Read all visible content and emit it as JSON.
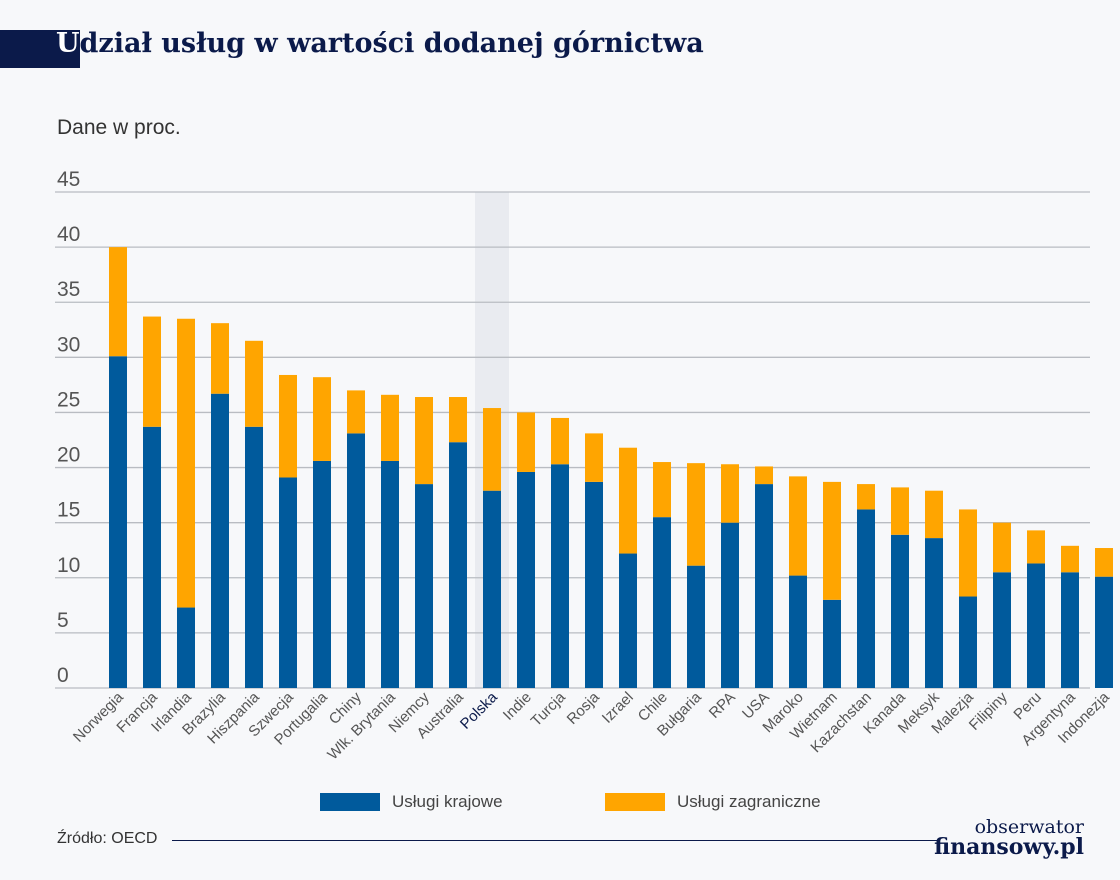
{
  "title_first_letter": "U",
  "title_rest": "dział usług w wartości dodanej górnictwa",
  "subtitle": "Dane w proc.",
  "source": "Źródło: OECD",
  "logo": {
    "line1": "obserwator",
    "line2": "finansowy.pl"
  },
  "colors": {
    "domestic": "#005a9c",
    "foreign": "#ffa500",
    "title": "#0b1a4a",
    "highlight": "#e9ebf0"
  },
  "chart_data": {
    "type": "bar",
    "stacked": true,
    "ylim": [
      0,
      45
    ],
    "yticks": [
      0,
      5,
      10,
      15,
      20,
      25,
      30,
      35,
      40,
      45
    ],
    "grid": true,
    "legend_position": "bottom",
    "highlight_category": "Polska",
    "categories": [
      "Norwegia",
      "Francja",
      "Irlandia",
      "Brazylia",
      "Hiszpania",
      "Szwecja",
      "Portugalia",
      "Chiny",
      "Wlk. Brytania",
      "Niemcy",
      "Australia",
      "Polska",
      "Indie",
      "Turcja",
      "Rosja",
      "Izrael",
      "Chile",
      "Bułgaria",
      "RPA",
      "USA",
      "Maroko",
      "Wietnam",
      "Kazachstan",
      "Kanada",
      "Meksyk",
      "Malezja",
      "Filipiny",
      "Peru",
      "Argentyna",
      "Indonezja"
    ],
    "series": [
      {
        "name": "Usługi krajowe",
        "values": [
          30.1,
          23.7,
          7.3,
          26.7,
          23.7,
          19.1,
          20.6,
          23.1,
          20.6,
          18.5,
          22.3,
          17.9,
          19.6,
          20.3,
          18.7,
          12.2,
          15.5,
          11.1,
          15.0,
          18.5,
          10.2,
          8.0,
          16.2,
          13.9,
          13.6,
          8.3,
          10.5,
          11.3,
          10.5,
          10.1
        ]
      },
      {
        "name": "Usługi zagraniczne",
        "values": [
          9.9,
          10.0,
          26.2,
          6.4,
          7.8,
          9.3,
          7.6,
          3.9,
          6.0,
          7.9,
          4.1,
          7.5,
          5.4,
          4.2,
          4.4,
          9.6,
          5.0,
          9.3,
          5.3,
          1.6,
          9.0,
          10.7,
          2.3,
          4.3,
          4.3,
          7.9,
          4.5,
          3.0,
          2.4,
          2.6
        ]
      }
    ]
  }
}
